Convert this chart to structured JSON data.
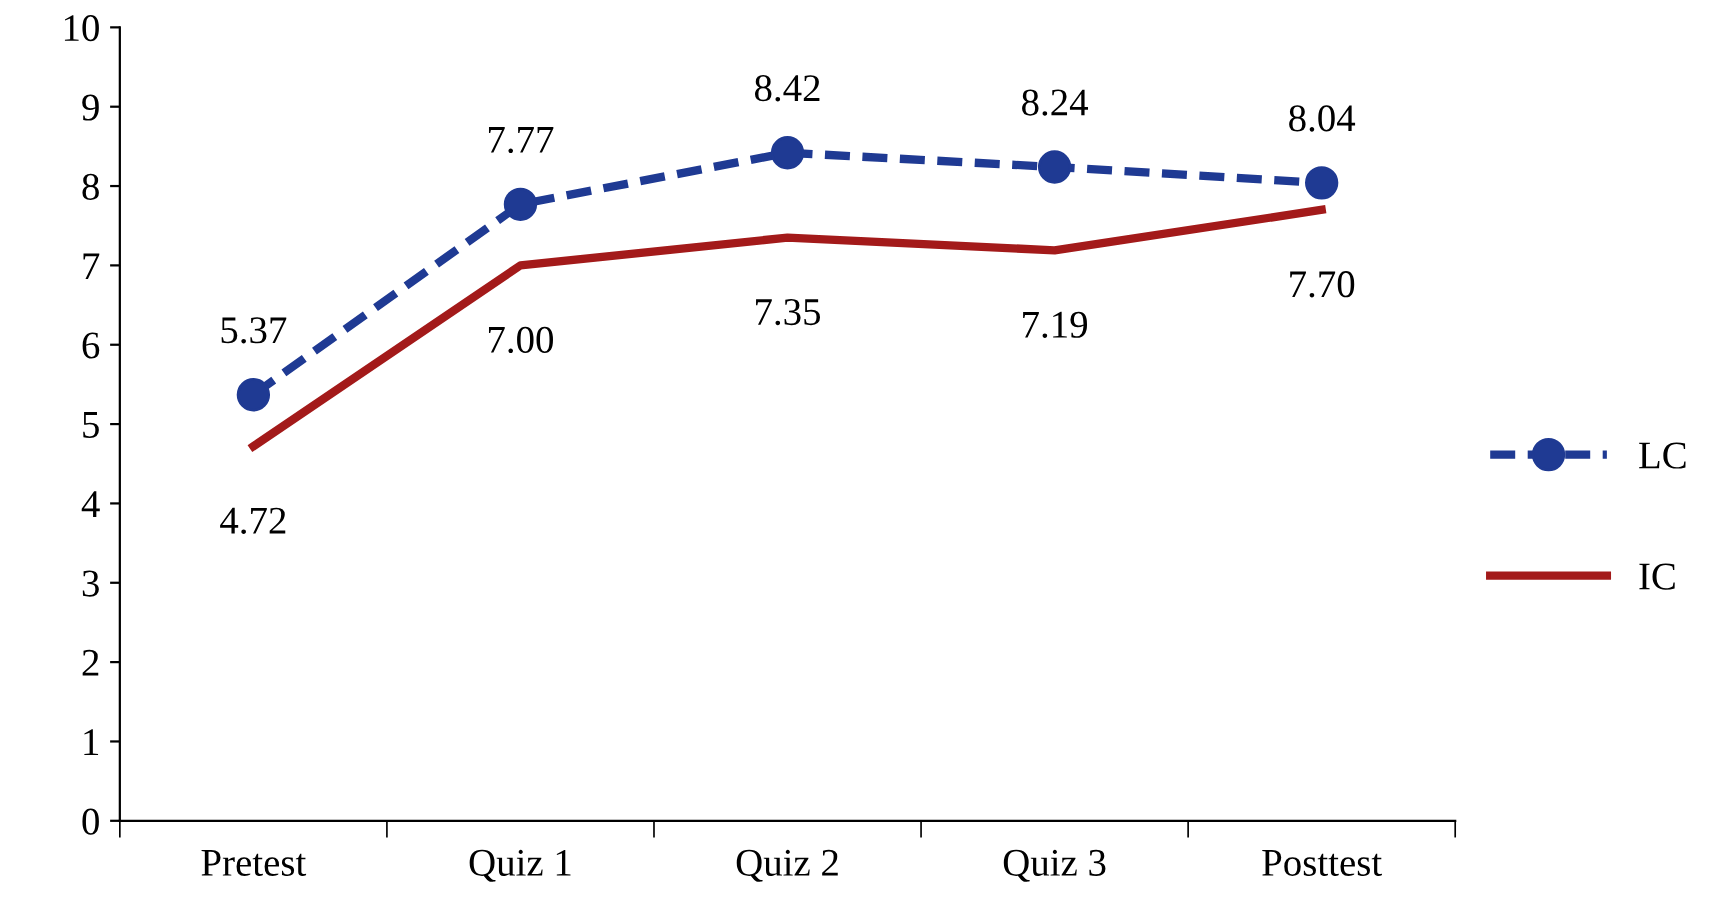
{
  "chart_data": {
    "type": "line",
    "categories": [
      "Pretest",
      "Quiz 1",
      "Quiz 2",
      "Quiz 3",
      "Posttest"
    ],
    "series": [
      {
        "name": "LC",
        "color": "#1f3a93",
        "values": [
          5.37,
          7.77,
          8.42,
          8.24,
          8.04
        ],
        "value_labels": [
          "5.37",
          "7.77",
          "8.42",
          "8.24",
          "8.04"
        ],
        "marker": "circle",
        "line_style": "dashed"
      },
      {
        "name": "IC",
        "color": "#a31a1a",
        "values": [
          4.72,
          7.0,
          7.35,
          7.19,
          7.7
        ],
        "value_labels": [
          "4.72",
          "7.00",
          "7.35",
          "7.19",
          "7.70"
        ],
        "marker": "none",
        "line_style": "solid"
      }
    ],
    "ylim": [
      0,
      10
    ],
    "yticks": [
      0,
      1,
      2,
      3,
      4,
      5,
      6,
      7,
      8,
      9,
      10
    ],
    "grid": false,
    "legend": "right"
  }
}
